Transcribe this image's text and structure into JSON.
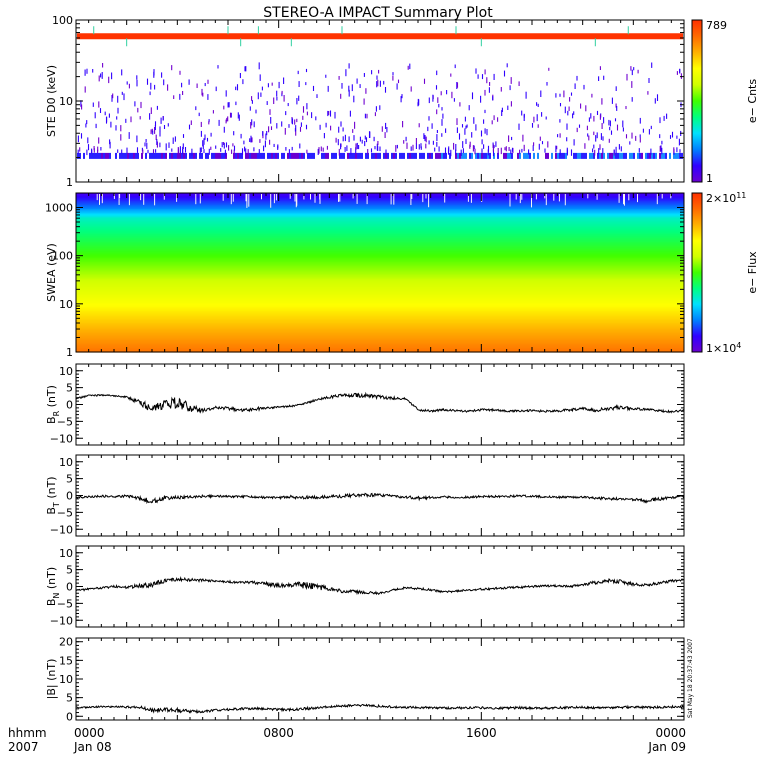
{
  "title": "STEREO-A IMPACT Summary Plot",
  "colors": {
    "frame": "#000000",
    "trace": "#000000",
    "spectrogram_scale": [
      "#6a00d0",
      "#3000ff",
      "#0080ff",
      "#00e0ff",
      "#00ff80",
      "#40ff00",
      "#d0ff00",
      "#ffff00",
      "#ffb000",
      "#ff6a00",
      "#ff3000"
    ],
    "ste_band_color": "#ff3300"
  },
  "side_stamp": "Sat May 18 20:37:43 2007",
  "time_axis": {
    "row1_label": "hhmm",
    "row2_label": "2007",
    "ticks": [
      {
        "hour": 0,
        "label": "0000",
        "date": "Jan 08"
      },
      {
        "hour": 8,
        "label": "0800",
        "date": ""
      },
      {
        "hour": 16,
        "label": "1600",
        "date": ""
      },
      {
        "hour": 24,
        "label": "0000",
        "date": "Jan 09"
      }
    ],
    "range_hours": [
      0,
      24
    ]
  },
  "chart_data": [
    {
      "id": "ste",
      "type": "heatmap",
      "ylabel": "STE D0 (keV)",
      "yscale": "log",
      "ylim": [
        1,
        100
      ],
      "yticks": [
        {
          "v": 1,
          "label": "1"
        },
        {
          "v": 10,
          "label": "10"
        },
        {
          "v": 100,
          "label": "100"
        }
      ],
      "colorbar": {
        "label": "e− Cnts",
        "max_label": "789",
        "min_label": "1",
        "min": 1,
        "max": 789
      },
      "features": [
        {
          "name": "high-energy band",
          "energy_keV": 63,
          "counts": 789
        },
        {
          "name": "low-energy band",
          "energy_keV": 2.1,
          "counts": 3
        },
        {
          "name": "scattered counts",
          "energy_range_keV": [
            2.5,
            30
          ],
          "counts": 1
        }
      ]
    },
    {
      "id": "swea",
      "type": "heatmap",
      "ylabel": "SWEA (eV)",
      "yscale": "log",
      "ylim": [
        1,
        2000
      ],
      "yticks": [
        {
          "v": 1,
          "label": "1"
        },
        {
          "v": 10,
          "label": "10"
        },
        {
          "v": 100,
          "label": "100"
        },
        {
          "v": 1000,
          "label": "1000"
        }
      ],
      "colorbar": {
        "label": "e− Flux",
        "max_label": "2×10",
        "max_exp": "11",
        "min_label": "1×10",
        "min_exp": "4"
      },
      "features": [
        {
          "energy_eV": 1,
          "flux_level": "high (orange)"
        },
        {
          "energy_eV": 10,
          "flux_level": "yellow"
        },
        {
          "energy_eV": 100,
          "flux_level": "green"
        },
        {
          "energy_eV": 500,
          "flux_level": "cyan"
        },
        {
          "energy_eV": 2000,
          "flux_level": "low (blue/purple)"
        }
      ]
    },
    {
      "id": "br",
      "type": "line",
      "ylabel": "B",
      "ylabel_sub": "R",
      "ylabel_unit": " (nT)",
      "ylim": [
        -12,
        12
      ],
      "yticks": [
        {
          "v": -10,
          "label": "−10"
        },
        {
          "v": -5,
          "label": "−5"
        },
        {
          "v": 0,
          "label": "0"
        },
        {
          "v": 5,
          "label": "5"
        },
        {
          "v": 10,
          "label": "10"
        }
      ],
      "x": [
        0,
        0.5,
        1,
        1.5,
        2,
        2.5,
        3,
        3.5,
        4,
        4.5,
        5,
        5.5,
        6,
        6.5,
        7,
        7.5,
        8,
        8.5,
        9,
        9.5,
        10,
        10.5,
        11,
        11.5,
        12,
        12.5,
        13,
        13.5,
        14,
        14.5,
        15,
        15.5,
        16,
        16.5,
        17,
        17.5,
        18,
        18.5,
        19,
        19.5,
        20,
        20.5,
        21,
        21.5,
        22,
        22.5,
        23,
        23.5,
        24
      ],
      "values": [
        1.8,
        2.6,
        2.8,
        2.6,
        2.2,
        0.6,
        -1.0,
        -0.2,
        0.8,
        -1.0,
        -1.8,
        -0.9,
        -1.2,
        -1.6,
        -1.4,
        -1.0,
        -0.8,
        -0.5,
        0.2,
        1.4,
        2.2,
        2.7,
        2.8,
        2.6,
        2.2,
        1.9,
        1.7,
        -1.6,
        -1.9,
        -1.6,
        -1.8,
        -2.0,
        -1.6,
        -1.6,
        -1.9,
        -1.9,
        -1.8,
        -2.0,
        -1.9,
        -1.6,
        -1.2,
        -1.8,
        -1.2,
        -0.8,
        -1.3,
        -1.4,
        -1.8,
        -2.2,
        -1.8
      ],
      "noise": [
        0.3,
        0.3,
        0.2,
        0.2,
        0.3,
        0.8,
        1.2,
        1.4,
        1.8,
        1.2,
        0.5,
        0.4,
        0.5,
        0.5,
        0.6,
        0.3,
        0.3,
        0.3,
        0.3,
        0.3,
        0.4,
        0.5,
        0.6,
        0.7,
        0.6,
        0.4,
        0.3,
        0.4,
        0.3,
        0.3,
        0.3,
        0.3,
        0.3,
        0.3,
        0.3,
        0.3,
        0.3,
        0.3,
        0.3,
        0.4,
        0.4,
        0.4,
        0.6,
        0.6,
        0.4,
        0.3,
        0.3,
        0.3,
        0.3
      ]
    },
    {
      "id": "bt",
      "type": "line",
      "ylabel": "B",
      "ylabel_sub": "T",
      "ylabel_unit": " (nT)",
      "ylim": [
        -12,
        12
      ],
      "yticks": [
        {
          "v": -10,
          "label": "−10"
        },
        {
          "v": -5,
          "label": "−5"
        },
        {
          "v": 0,
          "label": "0"
        },
        {
          "v": 5,
          "label": "5"
        },
        {
          "v": 10,
          "label": "10"
        }
      ],
      "x": [
        0,
        0.5,
        1,
        1.5,
        2,
        2.5,
        3,
        3.5,
        4,
        4.5,
        5,
        5.5,
        6,
        6.5,
        7,
        7.5,
        8,
        8.5,
        9,
        9.5,
        10,
        10.5,
        11,
        11.5,
        12,
        12.5,
        13,
        13.5,
        14,
        14.5,
        15,
        15.5,
        16,
        16.5,
        17,
        17.5,
        18,
        18.5,
        19,
        19.5,
        20,
        20.5,
        21,
        21.5,
        22,
        22.5,
        23,
        23.5,
        24
      ],
      "values": [
        -0.6,
        -0.4,
        -0.2,
        -0.3,
        -0.2,
        -0.8,
        -1.8,
        -0.6,
        -0.7,
        -0.4,
        -0.3,
        -0.2,
        -0.3,
        -0.3,
        -0.4,
        -0.6,
        -0.7,
        -0.5,
        -0.5,
        -0.6,
        -0.3,
        -0.2,
        0.1,
        0.2,
        0.1,
        -0.2,
        -0.4,
        -0.8,
        -0.6,
        -0.4,
        -0.6,
        -0.5,
        -0.3,
        -0.3,
        -0.3,
        -0.1,
        -0.2,
        -0.4,
        -0.5,
        -0.5,
        -0.4,
        -0.8,
        -0.9,
        -1.0,
        -1.2,
        -1.6,
        -1.0,
        -0.6,
        -0.2
      ],
      "noise": [
        0.3,
        0.3,
        0.3,
        0.3,
        0.4,
        0.5,
        0.8,
        0.6,
        0.5,
        0.4,
        0.4,
        0.3,
        0.3,
        0.3,
        0.3,
        0.3,
        0.3,
        0.6,
        0.5,
        0.4,
        0.4,
        0.5,
        0.6,
        0.5,
        0.4,
        0.4,
        0.4,
        0.5,
        0.4,
        0.3,
        0.3,
        0.3,
        0.3,
        0.3,
        0.3,
        0.3,
        0.3,
        0.3,
        0.3,
        0.3,
        0.3,
        0.4,
        0.4,
        0.4,
        0.4,
        0.5,
        0.5,
        0.4,
        0.3
      ]
    },
    {
      "id": "bn",
      "type": "line",
      "ylabel": "B",
      "ylabel_sub": "N",
      "ylabel_unit": " (nT)",
      "ylim": [
        -12,
        12
      ],
      "yticks": [
        {
          "v": -10,
          "label": "−10"
        },
        {
          "v": -5,
          "label": "−5"
        },
        {
          "v": 0,
          "label": "0"
        },
        {
          "v": 5,
          "label": "5"
        },
        {
          "v": 10,
          "label": "10"
        }
      ],
      "x": [
        0,
        0.5,
        1,
        1.5,
        2,
        2.5,
        3,
        3.5,
        4,
        4.5,
        5,
        5.5,
        6,
        6.5,
        7,
        7.5,
        8,
        8.5,
        9,
        9.5,
        10,
        10.5,
        11,
        11.5,
        12,
        12.5,
        13,
        13.5,
        14,
        14.5,
        15,
        15.5,
        16,
        16.5,
        17,
        17.5,
        18,
        18.5,
        19,
        19.5,
        20,
        20.5,
        21,
        21.5,
        22,
        22.5,
        23,
        23.5,
        24
      ],
      "values": [
        -1.2,
        -0.8,
        -0.4,
        0.0,
        -0.2,
        0.2,
        0.6,
        1.6,
        2.2,
        2.0,
        1.8,
        1.6,
        1.4,
        1.2,
        1.2,
        0.8,
        0.2,
        0.4,
        0.6,
        0.0,
        -0.8,
        -1.4,
        -1.6,
        -1.8,
        -2.0,
        -1.0,
        -0.4,
        -0.6,
        -1.0,
        -1.6,
        -1.4,
        -1.0,
        -0.8,
        -0.6,
        -0.4,
        -0.2,
        0.0,
        0.2,
        0.2,
        0.0,
        0.6,
        1.2,
        1.8,
        1.4,
        0.6,
        0.4,
        1.0,
        1.6,
        2.0
      ],
      "noise": [
        0.3,
        0.3,
        0.3,
        0.4,
        0.4,
        0.6,
        0.8,
        0.6,
        0.5,
        0.4,
        0.4,
        0.3,
        0.3,
        0.3,
        0.4,
        0.5,
        0.6,
        0.5,
        1.2,
        1.0,
        0.6,
        0.5,
        0.5,
        0.4,
        0.3,
        0.3,
        0.3,
        0.3,
        0.3,
        0.3,
        0.3,
        0.3,
        0.3,
        0.3,
        0.3,
        0.3,
        0.3,
        0.3,
        0.3,
        0.3,
        0.4,
        0.5,
        0.6,
        0.6,
        0.5,
        0.4,
        0.4,
        0.4,
        0.3
      ]
    },
    {
      "id": "bmag",
      "type": "line",
      "ylabel": "|B| (nT)",
      "ylim": [
        -1,
        21
      ],
      "yticks": [
        {
          "v": 0,
          "label": "0"
        },
        {
          "v": 5,
          "label": "5"
        },
        {
          "v": 10,
          "label": "10"
        },
        {
          "v": 15,
          "label": "15"
        },
        {
          "v": 20,
          "label": "20"
        }
      ],
      "x": [
        0,
        0.5,
        1,
        1.5,
        2,
        2.5,
        3,
        3.5,
        4,
        4.5,
        5,
        5.5,
        6,
        6.5,
        7,
        7.5,
        8,
        8.5,
        9,
        9.5,
        10,
        10.5,
        11,
        11.5,
        12,
        12.5,
        13,
        13.5,
        14,
        14.5,
        15,
        15.5,
        16,
        16.5,
        17,
        17.5,
        18,
        18.5,
        19,
        19.5,
        20,
        20.5,
        21,
        21.5,
        22,
        22.5,
        23,
        23.5,
        24
      ],
      "values": [
        2.3,
        2.4,
        2.6,
        2.5,
        2.5,
        2.4,
        1.6,
        1.8,
        1.6,
        1.3,
        1.2,
        1.6,
        1.8,
        2.0,
        2.1,
        2.0,
        1.8,
        1.8,
        2.0,
        2.3,
        2.6,
        2.8,
        2.9,
        2.9,
        2.7,
        2.5,
        2.4,
        2.4,
        2.3,
        2.2,
        2.2,
        2.3,
        2.3,
        2.2,
        2.2,
        2.3,
        2.2,
        2.2,
        2.3,
        2.3,
        2.4,
        2.3,
        2.2,
        2.4,
        2.5,
        2.4,
        2.4,
        2.5,
        2.6
      ],
      "noise": [
        0.2,
        0.2,
        0.2,
        0.2,
        0.3,
        0.4,
        0.5,
        0.5,
        0.6,
        0.4,
        0.3,
        0.3,
        0.3,
        0.3,
        0.3,
        0.3,
        0.3,
        0.3,
        0.4,
        0.3,
        0.3,
        0.3,
        0.3,
        0.3,
        0.3,
        0.3,
        0.3,
        0.3,
        0.3,
        0.3,
        0.3,
        0.3,
        0.3,
        0.3,
        0.3,
        0.3,
        0.3,
        0.3,
        0.3,
        0.3,
        0.3,
        0.3,
        0.3,
        0.3,
        0.3,
        0.3,
        0.3,
        0.3,
        0.3
      ]
    }
  ]
}
